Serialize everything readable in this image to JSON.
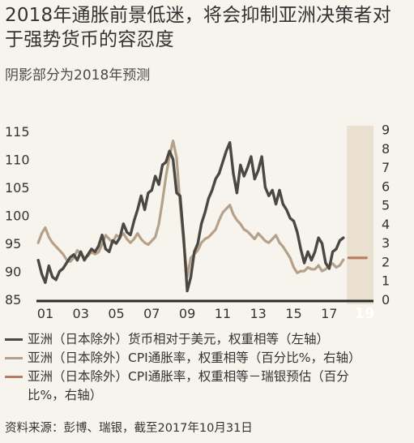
{
  "header": {
    "title": "2018年通胀前景低迷，将会抑制亚洲决策者对于强势货币的容忍度",
    "subtitle": "阴影部分为2018年预测"
  },
  "colors": {
    "fx": "#4b4743",
    "cpi": "#b5a189",
    "forecast": "#b97b61",
    "shade": "#e9e0d0",
    "axis": "#2a2a2a"
  },
  "chart_data": {
    "type": "line",
    "x_ticks": [
      "01",
      "03",
      "05",
      "07",
      "09",
      "11",
      "13",
      "15",
      "17",
      "19"
    ],
    "x_range": [
      2000.5,
      2019.5
    ],
    "forecast_shade": [
      2018.0,
      2019.5
    ],
    "left_axis": {
      "ticks": [
        85,
        90,
        95,
        100,
        105,
        110,
        115
      ],
      "ylim": [
        85,
        116
      ]
    },
    "right_axis": {
      "ticks": [
        0,
        1,
        2,
        3,
        4,
        5,
        6,
        7,
        8,
        9
      ],
      "ylim": [
        0,
        9.2
      ]
    },
    "grid": false,
    "series": [
      {
        "name": "亚洲（日本除外）货币相对于美元，权重相等（左轴）",
        "axis": "left",
        "x": [
          2000.6,
          2000.8,
          2001.0,
          2001.2,
          2001.4,
          2001.6,
          2001.8,
          2002.0,
          2002.2,
          2002.4,
          2002.6,
          2002.8,
          2003.0,
          2003.2,
          2003.4,
          2003.6,
          2003.8,
          2004.0,
          2004.2,
          2004.4,
          2004.6,
          2004.8,
          2005.0,
          2005.2,
          2005.4,
          2005.6,
          2005.8,
          2006.0,
          2006.2,
          2006.4,
          2006.6,
          2006.8,
          2007.0,
          2007.2,
          2007.4,
          2007.6,
          2007.8,
          2008.0,
          2008.2,
          2008.4,
          2008.6,
          2008.8,
          2009.0,
          2009.2,
          2009.4,
          2009.6,
          2009.8,
          2010.0,
          2010.2,
          2010.4,
          2010.6,
          2010.8,
          2011.0,
          2011.2,
          2011.4,
          2011.6,
          2011.8,
          2012.0,
          2012.2,
          2012.4,
          2012.6,
          2012.8,
          2013.0,
          2013.2,
          2013.4,
          2013.6,
          2013.8,
          2014.0,
          2014.2,
          2014.4,
          2014.6,
          2014.8,
          2015.0,
          2015.2,
          2015.4,
          2015.6,
          2015.8,
          2016.0,
          2016.2,
          2016.4,
          2016.6,
          2016.8,
          2017.0,
          2017.2,
          2017.4,
          2017.6,
          2017.8
        ],
        "values": [
          92.0,
          89.5,
          88.0,
          91.0,
          89.0,
          88.5,
          90.0,
          90.5,
          91.5,
          92.5,
          93.0,
          92.0,
          93.5,
          92.0,
          93.0,
          94.0,
          93.5,
          94.5,
          96.5,
          94.0,
          93.5,
          95.5,
          95.0,
          96.0,
          98.5,
          97.0,
          96.5,
          99.0,
          101.0,
          103.5,
          101.0,
          104.0,
          104.5,
          107.0,
          105.5,
          109.0,
          109.5,
          111.5,
          110.0,
          104.0,
          103.5,
          96.0,
          86.5,
          89.0,
          93.5,
          95.0,
          98.5,
          100.5,
          103.0,
          104.5,
          106.5,
          107.5,
          109.5,
          111.5,
          113.0,
          107.5,
          104.0,
          109.0,
          107.0,
          108.5,
          110.5,
          106.5,
          108.0,
          110.5,
          105.0,
          103.5,
          104.5,
          102.0,
          104.5,
          102.0,
          101.0,
          99.5,
          99.0,
          97.0,
          94.0,
          91.5,
          93.5,
          92.0,
          93.5,
          96.0,
          95.0,
          91.5,
          90.5,
          93.5,
          94.0,
          95.5,
          96.0
        ]
      },
      {
        "name": "亚洲（日本除外）CPI通胀率，权重相等（百分比%，右轴）",
        "axis": "right",
        "x": [
          2000.6,
          2000.8,
          2001.0,
          2001.2,
          2001.4,
          2001.6,
          2001.8,
          2002.0,
          2002.2,
          2002.4,
          2002.6,
          2002.8,
          2003.0,
          2003.2,
          2003.4,
          2003.6,
          2003.8,
          2004.0,
          2004.2,
          2004.4,
          2004.6,
          2004.8,
          2005.0,
          2005.2,
          2005.4,
          2005.6,
          2005.8,
          2006.0,
          2006.2,
          2006.4,
          2006.6,
          2006.8,
          2007.0,
          2007.2,
          2007.4,
          2007.6,
          2007.8,
          2008.0,
          2008.2,
          2008.4,
          2008.6,
          2008.8,
          2009.0,
          2009.2,
          2009.4,
          2009.6,
          2009.8,
          2010.0,
          2010.2,
          2010.4,
          2010.6,
          2010.8,
          2011.0,
          2011.2,
          2011.4,
          2011.6,
          2011.8,
          2012.0,
          2012.2,
          2012.4,
          2012.6,
          2012.8,
          2013.0,
          2013.2,
          2013.4,
          2013.6,
          2013.8,
          2014.0,
          2014.2,
          2014.4,
          2014.6,
          2014.8,
          2015.0,
          2015.2,
          2015.4,
          2015.6,
          2015.8,
          2016.0,
          2016.2,
          2016.4,
          2016.6,
          2016.8,
          2017.0,
          2017.2,
          2017.4,
          2017.6,
          2017.8
        ],
        "values": [
          3.0,
          3.5,
          3.8,
          3.3,
          3.0,
          2.8,
          2.6,
          2.4,
          2.1,
          2.0,
          2.2,
          2.6,
          2.4,
          2.2,
          2.3,
          2.5,
          2.4,
          2.5,
          2.9,
          3.4,
          3.2,
          3.0,
          3.4,
          3.3,
          3.5,
          3.2,
          3.0,
          3.2,
          3.5,
          3.2,
          3.0,
          2.9,
          3.1,
          3.3,
          4.0,
          5.2,
          6.5,
          7.6,
          8.4,
          7.5,
          5.0,
          3.0,
          1.2,
          2.2,
          2.4,
          2.6,
          3.0,
          3.2,
          3.3,
          3.5,
          3.7,
          4.2,
          4.6,
          4.8,
          5.0,
          4.5,
          4.2,
          4.0,
          3.7,
          3.6,
          3.4,
          3.2,
          3.5,
          3.3,
          3.1,
          3.0,
          3.2,
          3.4,
          3.0,
          2.8,
          2.5,
          2.2,
          1.7,
          1.4,
          1.5,
          1.5,
          1.7,
          1.6,
          1.6,
          1.8,
          1.5,
          1.6,
          1.8,
          1.9,
          1.7,
          1.8,
          2.1
        ]
      },
      {
        "name": "亚洲（日本除外）CPI通胀率，权重相等－瑞银预估（百分比%，右轴）",
        "axis": "right",
        "x": [
          2018.1,
          2019.1
        ],
        "values": [
          2.2,
          2.2
        ]
      }
    ]
  },
  "legend": [
    "亚洲（日本除外）货币相对于美元，权重相等（左轴）",
    "亚洲（日本除外）CPI通胀率，权重相等（百分比%，右轴）",
    "亚洲（日本除外）CPI通胀率，权重相等－瑞银预估（百分比%，右轴）"
  ],
  "source": "资料来源：彭博、瑞银，截至2017年10月31日"
}
